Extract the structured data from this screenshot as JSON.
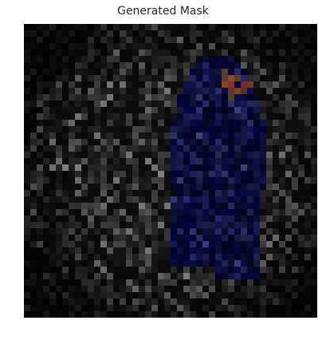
{
  "figure": {
    "title": "Generated Mask"
  },
  "image": {
    "description_tags": [
      "noisy-pixel-mask",
      "dark",
      "blue-figure-region"
    ],
    "grid": 46
  }
}
